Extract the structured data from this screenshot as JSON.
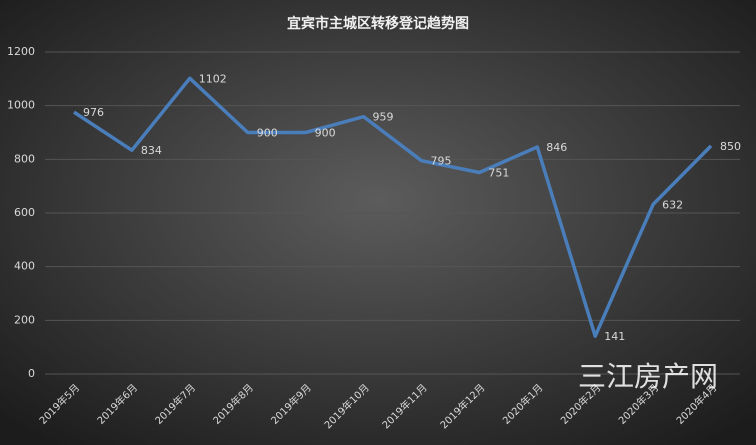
{
  "chart_data": {
    "type": "line",
    "title": "宜宾市主城区转移登记趋势图",
    "categories": [
      "2019年5月",
      "2019年6月",
      "2019年7月",
      "2019年8月",
      "2019年9月",
      "2019年10月",
      "2019年11月",
      "2019年12月",
      "2020年1月",
      "2020年2月",
      "2020年3月",
      "2020年4月"
    ],
    "values": [
      976,
      834,
      1102,
      900,
      900,
      959,
      795,
      751,
      846,
      141,
      632,
      850
    ],
    "color": "#4a7ebb",
    "ylim": [
      0,
      1200
    ],
    "yticks": [
      0,
      200,
      400,
      600,
      800,
      1000,
      1200
    ],
    "grid": true,
    "watermark": "三江房产网"
  }
}
